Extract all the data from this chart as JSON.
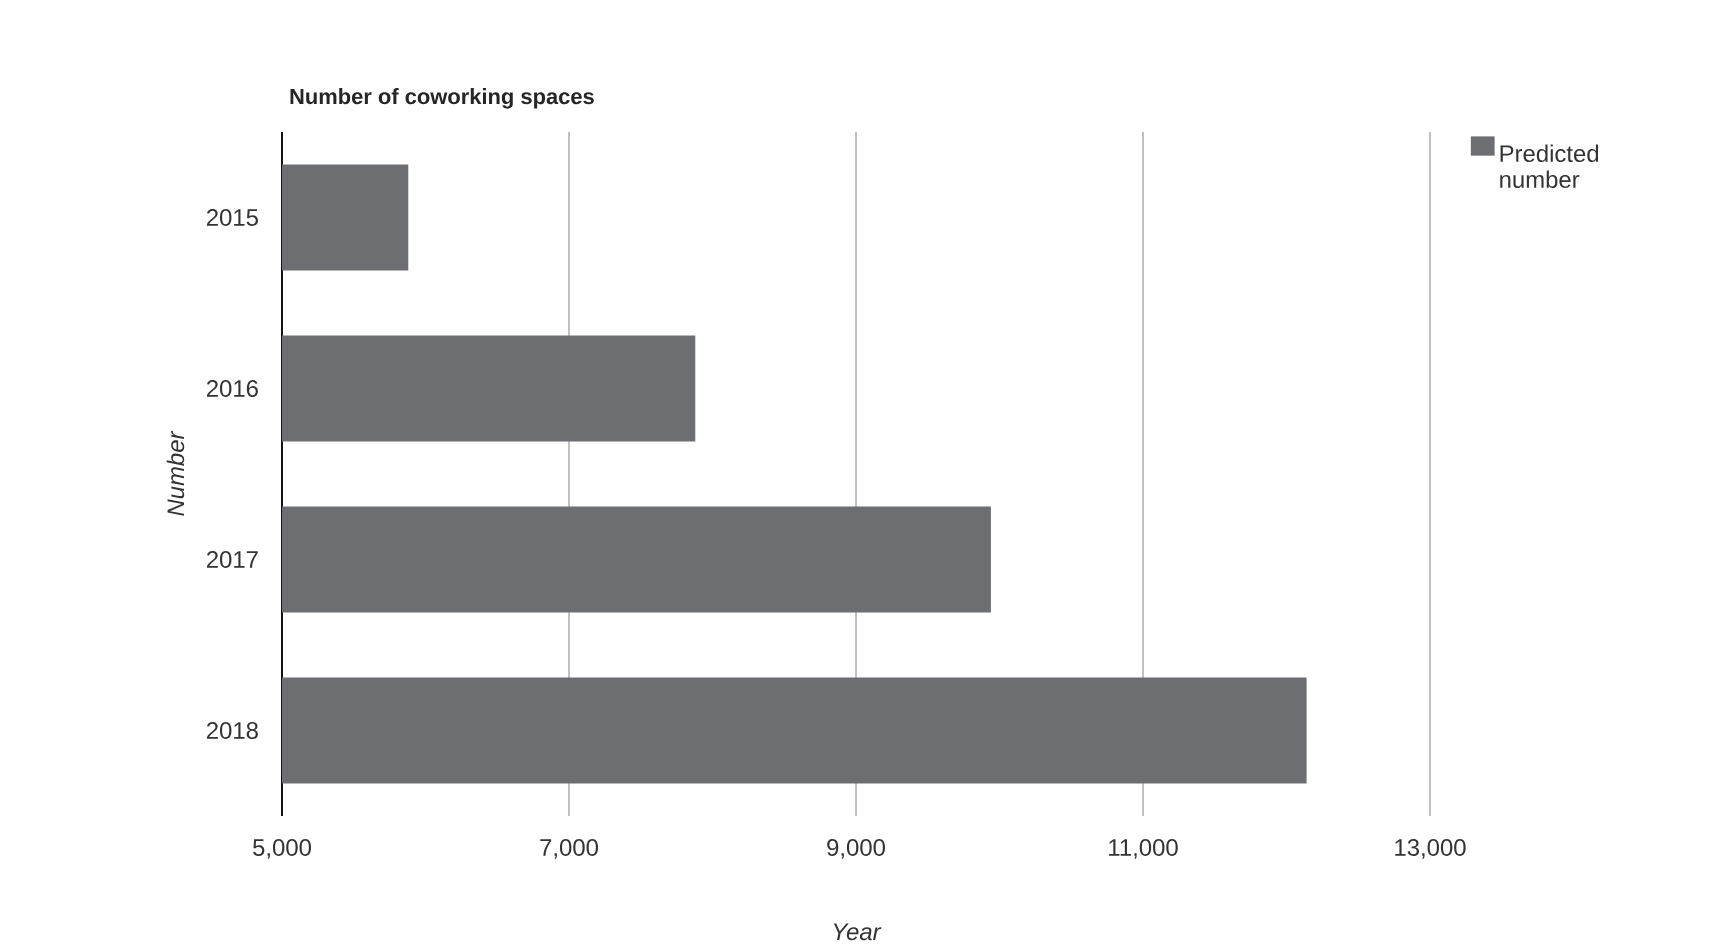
{
  "chart_data": {
    "type": "bar",
    "orientation": "horizontal",
    "title": "Number of coworking spaces",
    "xlabel": "Year",
    "ylabel": "Number",
    "categories": [
      "2015",
      "2016",
      "2017",
      "2018"
    ],
    "series": [
      {
        "name": "Predicted number",
        "color": "#6d6e71",
        "values": [
          5880,
          7880,
          9940,
          12140
        ]
      }
    ],
    "xlim": [
      5000,
      13000
    ],
    "xticks": [
      {
        "value": 5000,
        "label": "5,000"
      },
      {
        "value": 7000,
        "label": "7,000"
      },
      {
        "value": 9000,
        "label": "9,000"
      },
      {
        "value": 11000,
        "label": "11,000"
      },
      {
        "value": 13000,
        "label": "13,000"
      }
    ],
    "grid": "x",
    "legend": "top right"
  }
}
